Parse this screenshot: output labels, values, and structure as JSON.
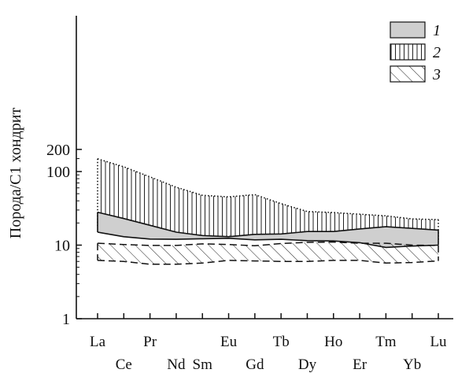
{
  "chart_data": {
    "type": "area",
    "yscale": "log",
    "ylim": [
      1,
      200
    ],
    "yticks": [
      {
        "value": 1,
        "label": "1"
      },
      {
        "value": 10,
        "label": "10"
      },
      {
        "value": 100,
        "label": "100"
      },
      {
        "value": 200,
        "label": "200"
      }
    ],
    "ylabel": "Порода/С1 хондрит",
    "xlabel": "",
    "title": "",
    "grid": false,
    "legend_position": "top-right",
    "categories": [
      "La",
      "Ce",
      "Pr",
      "Nd",
      "Sm",
      "Eu",
      "Gd",
      "Tb",
      "Dy",
      "Ho",
      "Er",
      "Tm",
      "Yb",
      "Lu"
    ],
    "category_rows": [
      "top",
      "bottom",
      "top",
      "bottom",
      "bottom",
      "top",
      "bottom",
      "top",
      "bottom",
      "top",
      "bottom",
      "top",
      "bottom",
      "top"
    ],
    "series": [
      {
        "name": "1",
        "pattern": "gray",
        "upper": [
          28,
          23,
          18.6,
          15,
          13.5,
          13,
          14,
          14.2,
          15.3,
          15.3,
          16.6,
          17.8,
          16.9,
          16
        ],
        "lower": [
          15,
          13,
          12.1,
          12,
          12.2,
          12.4,
          11.8,
          12,
          11.5,
          11.4,
          10.8,
          9.3,
          9.7,
          10
        ]
      },
      {
        "name": "2",
        "pattern": "vertical",
        "upper": [
          149,
          116,
          84.5,
          61.3,
          47.5,
          45.3,
          48.6,
          36.6,
          28.6,
          27.7,
          26.3,
          25,
          22.7,
          22.2
        ],
        "lower": [
          17,
          15,
          13.4,
          13,
          13,
          13.2,
          12.9,
          13.1,
          12.6,
          12.8,
          12.9,
          12.4,
          11.6,
          11
        ]
      },
      {
        "name": "3",
        "pattern": "hatch",
        "upper": [
          10.6,
          10.2,
          9.9,
          9.9,
          10.4,
          10.2,
          9.8,
          10.5,
          10.9,
          11,
          10.6,
          10.6,
          10,
          9.9
        ],
        "lower": [
          6.2,
          6,
          5.5,
          5.5,
          5.7,
          6.2,
          6.1,
          6,
          6,
          6.2,
          6.2,
          5.7,
          5.8,
          6.1
        ]
      }
    ]
  }
}
